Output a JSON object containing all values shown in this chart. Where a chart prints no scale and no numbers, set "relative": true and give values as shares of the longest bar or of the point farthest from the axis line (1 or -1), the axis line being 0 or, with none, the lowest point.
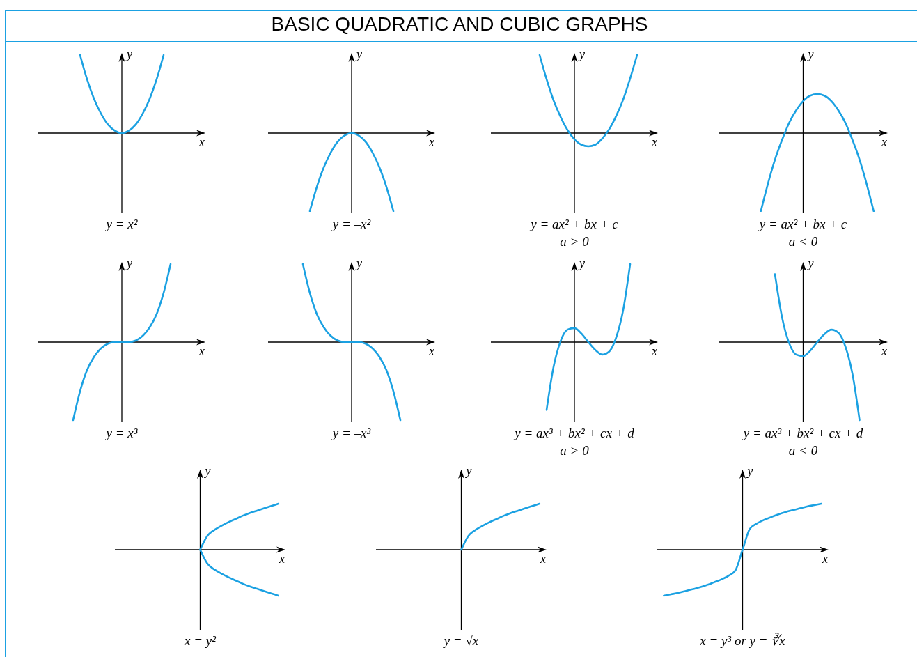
{
  "chart_data": [
    {
      "type": "other",
      "title": "BASIC QUADRATIC AND CUBIC GRAPHS"
    },
    {
      "type": "line",
      "title": "y = x²",
      "xlabel": "x",
      "ylabel": "y",
      "relative": true,
      "categories": [
        null,
        null,
        null,
        null,
        null,
        null,
        null,
        null,
        null,
        null,
        null,
        null,
        null,
        null,
        null,
        null,
        null,
        null,
        null,
        null,
        null,
        null,
        null,
        null,
        null
      ],
      "series": [
        {
          "color": "#1ba1e2",
          "values": [
            null,
            null,
            null,
            null,
            null,
            null,
            1,
            0.69,
            0.44,
            0.25,
            0.11,
            0.03,
            0,
            0.03,
            0.11,
            0.25,
            0.44,
            0.69,
            1,
            null,
            null,
            null,
            null,
            null,
            null
          ]
        }
      ]
    },
    {
      "type": "line",
      "title": "y = –x²",
      "xlabel": "x",
      "ylabel": "y",
      "relative": true,
      "categories": [
        null,
        null,
        null,
        null,
        null,
        null,
        null,
        null,
        null,
        null,
        null,
        null,
        null,
        null,
        null,
        null,
        null,
        null,
        null,
        null,
        null,
        null,
        null,
        null,
        null
      ],
      "series": [
        {
          "color": "#1ba1e2",
          "values": [
            null,
            null,
            null,
            null,
            null,
            null,
            -1,
            -0.69,
            -0.44,
            -0.25,
            -0.11,
            -0.03,
            0,
            -0.03,
            -0.11,
            -0.25,
            -0.44,
            -0.69,
            -1,
            null,
            null,
            null,
            null,
            null,
            null
          ]
        }
      ]
    },
    {
      "type": "line",
      "title": "y = ax² + bx + c",
      "annotations": [
        "a > 0"
      ],
      "xlabel": "x",
      "ylabel": "y",
      "relative": true,
      "categories": [
        null,
        null,
        null,
        null,
        null,
        null,
        null,
        null,
        null,
        null,
        null,
        null,
        null,
        null,
        null,
        null,
        null,
        null,
        null,
        null,
        null,
        null,
        null,
        null,
        null
      ],
      "series": [
        {
          "color": "#1ba1e2",
          "values": [
            null,
            null,
            null,
            null,
            null,
            null,
            null,
            1,
            0.69,
            0.42,
            0.21,
            0.04,
            -0.08,
            -0.15,
            -0.17,
            -0.15,
            -0.07,
            0.05,
            0.22,
            0.43,
            0.7,
            1,
            null,
            null,
            null
          ]
        }
      ]
    },
    {
      "type": "line",
      "title": "y = ax² + bx + c",
      "annotations": [
        "a < 0"
      ],
      "xlabel": "x",
      "ylabel": "y",
      "relative": true,
      "categories": [
        null,
        null,
        null,
        null,
        null,
        null,
        null,
        null,
        null,
        null,
        null,
        null,
        null,
        null,
        null,
        null,
        null,
        null,
        null,
        null,
        null,
        null,
        null,
        null,
        null
      ],
      "series": [
        {
          "color": "#1ba1e2",
          "values": [
            null,
            null,
            null,
            null,
            null,
            null,
            -1,
            -0.65,
            -0.34,
            -0.09,
            0.13,
            0.29,
            0.41,
            0.48,
            0.5,
            0.48,
            0.41,
            0.29,
            0.13,
            -0.09,
            -0.34,
            -0.65,
            -1,
            null,
            null
          ]
        }
      ]
    },
    {
      "type": "line",
      "title": "y = x³",
      "xlabel": "x",
      "ylabel": "y",
      "relative": true,
      "categories": [
        null,
        null,
        null,
        null,
        null,
        null,
        null,
        null,
        null,
        null,
        null,
        null,
        null,
        null,
        null,
        null,
        null,
        null,
        null,
        null,
        null,
        null,
        null,
        null,
        null
      ],
      "series": [
        {
          "color": "#1ba1e2",
          "values": [
            null,
            null,
            null,
            null,
            null,
            -1,
            -0.63,
            -0.36,
            -0.19,
            -0.08,
            -0.02,
            0,
            0,
            0,
            0.02,
            0.08,
            0.19,
            0.36,
            0.63,
            1,
            null,
            null,
            null,
            null,
            null
          ]
        }
      ]
    },
    {
      "type": "line",
      "title": "y = –x³",
      "xlabel": "x",
      "ylabel": "y",
      "relative": true,
      "categories": [
        null,
        null,
        null,
        null,
        null,
        null,
        null,
        null,
        null,
        null,
        null,
        null,
        null,
        null,
        null,
        null,
        null,
        null,
        null,
        null,
        null,
        null,
        null,
        null,
        null
      ],
      "series": [
        {
          "color": "#1ba1e2",
          "values": [
            null,
            null,
            null,
            null,
            null,
            1,
            0.63,
            0.36,
            0.19,
            0.08,
            0.02,
            0,
            0,
            0,
            -0.02,
            -0.08,
            -0.19,
            -0.36,
            -0.63,
            -1,
            null,
            null,
            null,
            null,
            null
          ]
        }
      ]
    },
    {
      "type": "line",
      "title": "y = ax³ + bx² + cx + d",
      "annotations": [
        "a > 0"
      ],
      "xlabel": "x",
      "ylabel": "y",
      "relative": true,
      "categories": [
        null,
        null,
        null,
        null,
        null,
        null,
        null,
        null,
        null,
        null,
        null,
        null,
        null,
        null,
        null,
        null,
        null,
        null,
        null,
        null,
        null,
        null,
        null,
        null,
        null
      ],
      "series": [
        {
          "color": "#1ba1e2",
          "values": [
            null,
            null,
            null,
            null,
            null,
            null,
            null,
            null,
            -0.87,
            -0.32,
            0.01,
            0.16,
            0.18,
            0.11,
            0,
            -0.1,
            -0.16,
            -0.12,
            0.06,
            0.41,
            1,
            null,
            null,
            null,
            null
          ]
        }
      ]
    },
    {
      "type": "line",
      "title": "y = ax³ + bx² + cx + d",
      "annotations": [
        "a < 0"
      ],
      "xlabel": "x",
      "ylabel": "y",
      "relative": true,
      "categories": [
        null,
        null,
        null,
        null,
        null,
        null,
        null,
        null,
        null,
        null,
        null,
        null,
        null,
        null,
        null,
        null,
        null,
        null,
        null,
        null,
        null,
        null,
        null,
        null,
        null
      ],
      "series": [
        {
          "color": "#1ba1e2",
          "values": [
            null,
            null,
            null,
            null,
            null,
            null,
            null,
            null,
            0.87,
            0.32,
            -0.01,
            -0.16,
            -0.18,
            -0.11,
            0,
            0.1,
            0.16,
            0.12,
            -0.06,
            -0.41,
            -1,
            null,
            null,
            null,
            null
          ]
        }
      ]
    },
    {
      "type": "line",
      "title": "x = y²",
      "xlabel": "x",
      "ylabel": "y",
      "relative": true,
      "categories": [
        null,
        null,
        null,
        null,
        null,
        null,
        null,
        null,
        null,
        null,
        null,
        null,
        null,
        null,
        null,
        null,
        null,
        null,
        null,
        null,
        null,
        null,
        null,
        null,
        null
      ],
      "series": [
        {
          "color": "#1ba1e2",
          "values": [
            null,
            null,
            null,
            null,
            null,
            null,
            null,
            null,
            null,
            null,
            null,
            null,
            0,
            0.3,
            0.43,
            0.52,
            0.6,
            0.67,
            0.74,
            0.8,
            0.85,
            0.9,
            0.95,
            1,
            null
          ]
        },
        {
          "color": "#1ba1e2",
          "values": [
            null,
            null,
            null,
            null,
            null,
            null,
            null,
            null,
            null,
            null,
            null,
            null,
            0,
            -0.3,
            -0.43,
            -0.52,
            -0.6,
            -0.67,
            -0.74,
            -0.8,
            -0.85,
            -0.9,
            -0.95,
            -1,
            null
          ]
        }
      ]
    },
    {
      "type": "line",
      "title": "y = √x",
      "xlabel": "x",
      "ylabel": "y",
      "relative": true,
      "categories": [
        null,
        null,
        null,
        null,
        null,
        null,
        null,
        null,
        null,
        null,
        null,
        null,
        null,
        null,
        null,
        null,
        null,
        null,
        null,
        null,
        null,
        null,
        null,
        null,
        null
      ],
      "series": [
        {
          "color": "#1ba1e2",
          "values": [
            null,
            null,
            null,
            null,
            null,
            null,
            null,
            null,
            null,
            null,
            null,
            null,
            0,
            0.3,
            0.43,
            0.52,
            0.6,
            0.67,
            0.74,
            0.8,
            0.85,
            0.9,
            0.95,
            1,
            null
          ]
        }
      ]
    },
    {
      "type": "line",
      "title": "x = y³ or y = ∛x",
      "xlabel": "x",
      "ylabel": "y",
      "relative": true,
      "categories": [
        null,
        null,
        null,
        null,
        null,
        null,
        null,
        null,
        null,
        null,
        null,
        null,
        null,
        null,
        null,
        null,
        null,
        null,
        null,
        null,
        null,
        null,
        null,
        null,
        null
      ],
      "series": [
        {
          "color": "#1ba1e2",
          "values": [
            null,
            -1,
            -0.97,
            -0.94,
            -0.9,
            -0.86,
            -0.82,
            -0.77,
            -0.71,
            -0.65,
            -0.57,
            -0.45,
            0,
            0.45,
            0.57,
            0.65,
            0.71,
            0.77,
            0.82,
            0.86,
            0.9,
            0.94,
            0.97,
            1,
            null
          ]
        }
      ]
    }
  ]
}
